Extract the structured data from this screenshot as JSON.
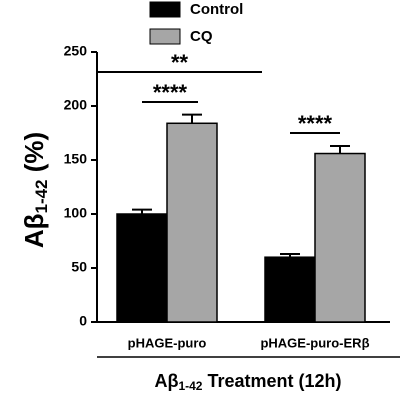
{
  "chart_data": {
    "type": "bar",
    "y_label_parts": [
      "Aβ",
      "1-42",
      " (%)"
    ],
    "x_label_parts": [
      "Aβ",
      "1-42",
      " Treatment (12h)"
    ],
    "categories": [
      "pHAGE-puro",
      "pHAGE-puro-ERβ"
    ],
    "series": [
      {
        "name": "Control",
        "color": "#000000",
        "values": [
          100,
          60
        ],
        "errors": [
          4,
          3
        ]
      },
      {
        "name": "CQ",
        "color": "#a6a6a6",
        "values": [
          184,
          156
        ],
        "errors": [
          8,
          7
        ]
      }
    ],
    "ylim": [
      0,
      250
    ],
    "yticks": [
      0,
      50,
      100,
      150,
      200,
      250
    ],
    "annotations": [
      "**",
      "****",
      "****"
    ]
  }
}
